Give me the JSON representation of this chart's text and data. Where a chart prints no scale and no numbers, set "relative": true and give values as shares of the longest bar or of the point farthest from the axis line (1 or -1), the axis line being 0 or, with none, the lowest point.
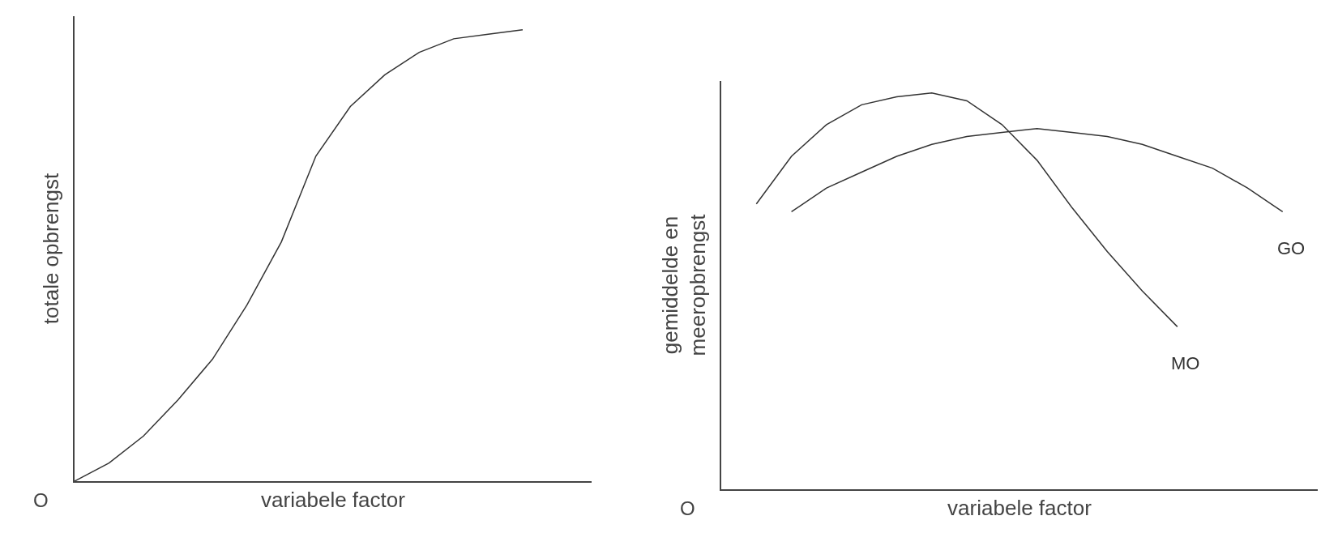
{
  "chart_data": [
    {
      "type": "line",
      "relative": true,
      "xlabel": "variabele factor",
      "ylabel": "totale opbrengst",
      "annotations": [
        "O"
      ],
      "marker": "none",
      "line_style": "solid",
      "categories": [
        null,
        null,
        null,
        null,
        null,
        null,
        null,
        null,
        null,
        null,
        null,
        null,
        null,
        null,
        null,
        null
      ],
      "series": [
        {
          "color": "#333333",
          "values": [
            0,
            0.04,
            0.1,
            0.18,
            0.27,
            0.39,
            0.53,
            0.72,
            0.83,
            0.9,
            0.95,
            0.98,
            0.99,
            1,
            null,
            null
          ]
        }
      ]
    },
    {
      "type": "line",
      "relative": true,
      "xlabel": "variabele factor",
      "ylabel": "gemiddelde en\nmeeropbrengst",
      "annotations": [
        "O"
      ],
      "marker": "none",
      "line_style": "solid",
      "categories": [
        null,
        null,
        null,
        null,
        null,
        null,
        null,
        null,
        null,
        null,
        null,
        null,
        null,
        null,
        null,
        null,
        null,
        null
      ],
      "series": [
        {
          "name": "MO",
          "color": "#333333",
          "values": [
            null,
            0.72,
            0.84,
            0.92,
            0.97,
            0.99,
            1,
            0.98,
            0.92,
            0.83,
            0.71,
            0.6,
            0.5,
            0.41,
            null,
            null,
            null,
            null
          ]
        },
        {
          "name": "GO",
          "color": "#333333",
          "values": [
            null,
            null,
            0.7,
            0.76,
            0.8,
            0.84,
            0.87,
            0.89,
            0.9,
            0.91,
            0.9,
            0.89,
            0.87,
            0.84,
            0.81,
            0.76,
            0.7,
            null
          ]
        }
      ]
    }
  ]
}
